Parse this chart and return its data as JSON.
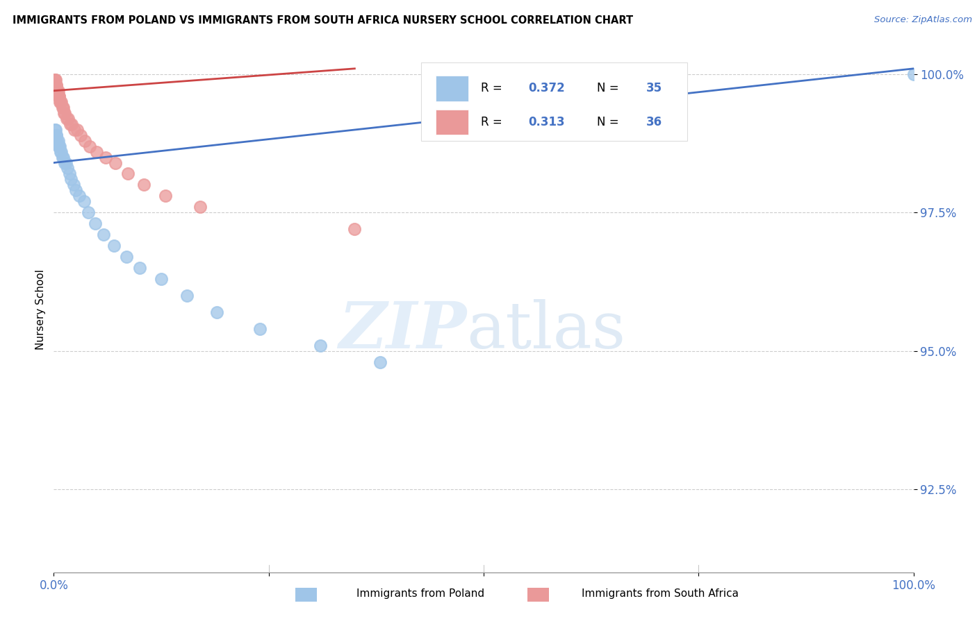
{
  "title": "IMMIGRANTS FROM POLAND VS IMMIGRANTS FROM SOUTH AFRICA NURSERY SCHOOL CORRELATION CHART",
  "source": "Source: ZipAtlas.com",
  "ylabel": "Nursery School",
  "ytick_labels": [
    "100.0%",
    "97.5%",
    "95.0%",
    "92.5%"
  ],
  "ytick_values": [
    1.0,
    0.975,
    0.95,
    0.925
  ],
  "xlim": [
    0.0,
    1.0
  ],
  "ylim": [
    0.91,
    1.005
  ],
  "color_poland": "#9fc5e8",
  "color_south_africa": "#ea9999",
  "color_trend_poland": "#4472c4",
  "color_trend_south_africa": "#cc4444",
  "label_poland": "Immigrants from Poland",
  "label_south_africa": "Immigrants from South Africa",
  "poland_x": [
    0.001,
    0.002,
    0.003,
    0.003,
    0.004,
    0.005,
    0.005,
    0.006,
    0.007,
    0.008,
    0.009,
    0.01,
    0.011,
    0.013,
    0.014,
    0.016,
    0.018,
    0.02,
    0.023,
    0.026,
    0.03,
    0.035,
    0.04,
    0.048,
    0.058,
    0.07,
    0.085,
    0.1,
    0.125,
    0.155,
    0.19,
    0.24,
    0.31,
    0.38,
    1.0
  ],
  "poland_y": [
    0.99,
    0.99,
    0.989,
    0.989,
    0.988,
    0.988,
    0.987,
    0.987,
    0.987,
    0.986,
    0.986,
    0.985,
    0.985,
    0.984,
    0.984,
    0.983,
    0.982,
    0.981,
    0.98,
    0.979,
    0.978,
    0.977,
    0.975,
    0.973,
    0.971,
    0.969,
    0.967,
    0.965,
    0.963,
    0.96,
    0.957,
    0.954,
    0.951,
    0.948,
    1.0
  ],
  "sa_x": [
    0.001,
    0.001,
    0.002,
    0.002,
    0.003,
    0.003,
    0.004,
    0.004,
    0.005,
    0.005,
    0.006,
    0.006,
    0.007,
    0.008,
    0.009,
    0.01,
    0.011,
    0.012,
    0.013,
    0.015,
    0.017,
    0.019,
    0.021,
    0.024,
    0.027,
    0.031,
    0.036,
    0.042,
    0.05,
    0.06,
    0.072,
    0.086,
    0.105,
    0.13,
    0.17,
    0.35
  ],
  "sa_y": [
    0.999,
    0.999,
    0.999,
    0.998,
    0.998,
    0.998,
    0.997,
    0.997,
    0.997,
    0.996,
    0.996,
    0.996,
    0.995,
    0.995,
    0.995,
    0.994,
    0.994,
    0.993,
    0.993,
    0.992,
    0.992,
    0.991,
    0.991,
    0.99,
    0.99,
    0.989,
    0.988,
    0.987,
    0.986,
    0.985,
    0.984,
    0.982,
    0.98,
    0.978,
    0.976,
    0.972
  ],
  "trend_poland_x0": 0.0,
  "trend_poland_y0": 0.984,
  "trend_poland_x1": 1.0,
  "trend_poland_y1": 1.001,
  "trend_sa_x0": 0.0,
  "trend_sa_y0": 0.997,
  "trend_sa_x1": 0.35,
  "trend_sa_y1": 1.001
}
